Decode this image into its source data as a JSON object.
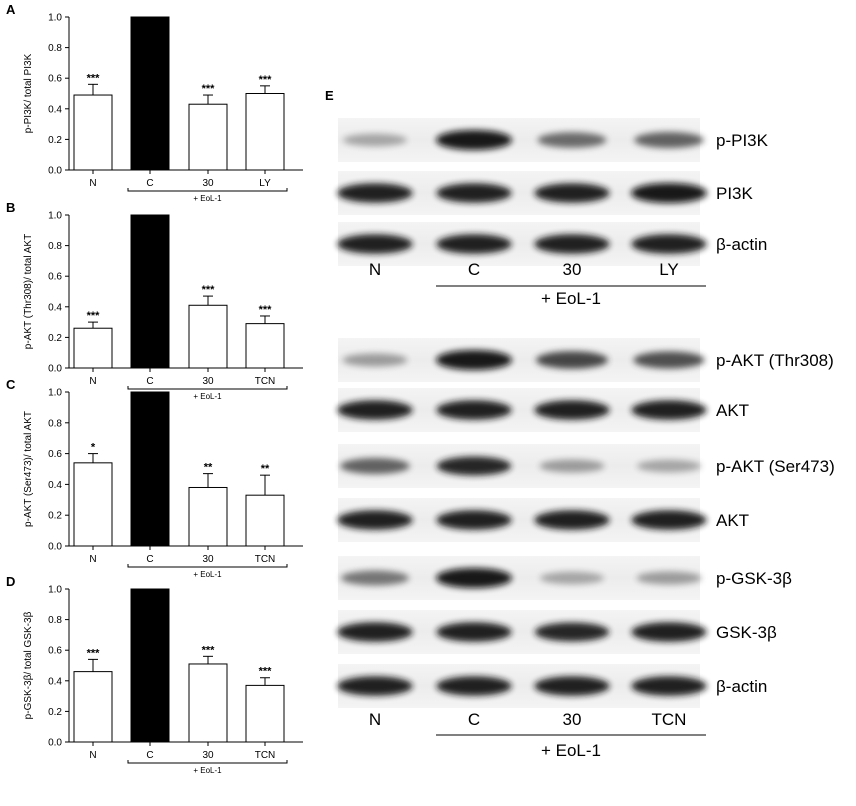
{
  "chart_data": [
    {
      "panel": "A",
      "type": "bar",
      "ylabel": "p-PI3K/ total PI3K",
      "ylim": [
        0,
        1.0
      ],
      "yticks": [
        "0.0",
        "0.2",
        "0.4",
        "0.6",
        "0.8",
        "1.0"
      ],
      "categories": [
        "N",
        "C",
        "30",
        "LY"
      ],
      "values": [
        0.49,
        1.0,
        0.43,
        0.5
      ],
      "errors": [
        0.07,
        0,
        0.06,
        0.05
      ],
      "significance": [
        "***",
        "",
        "***",
        "***"
      ],
      "fill": [
        "white",
        "black",
        "white",
        "white"
      ],
      "group_label": "+ EoL-1"
    },
    {
      "panel": "B",
      "type": "bar",
      "ylabel": "p-AKT (Thr308)/ total AKT",
      "ylim": [
        0,
        1.0
      ],
      "yticks": [
        "0.0",
        "0.2",
        "0.4",
        "0.6",
        "0.8",
        "1.0"
      ],
      "categories": [
        "N",
        "C",
        "30",
        "TCN"
      ],
      "values": [
        0.26,
        1.0,
        0.41,
        0.29
      ],
      "errors": [
        0.04,
        0,
        0.06,
        0.05
      ],
      "significance": [
        "***",
        "",
        "***",
        "***"
      ],
      "fill": [
        "white",
        "black",
        "white",
        "white"
      ],
      "group_label": "+ EoL-1"
    },
    {
      "panel": "C",
      "type": "bar",
      "ylabel": "p-AKT (Ser473)/ total AKT",
      "ylim": [
        0,
        1.0
      ],
      "yticks": [
        "0.0",
        "0.2",
        "0.4",
        "0.6",
        "0.8",
        "1.0"
      ],
      "categories": [
        "N",
        "C",
        "30",
        "TCN"
      ],
      "values": [
        0.54,
        1.0,
        0.38,
        0.33
      ],
      "errors": [
        0.06,
        0,
        0.09,
        0.13
      ],
      "significance": [
        "*",
        "",
        "**",
        "**"
      ],
      "fill": [
        "white",
        "black",
        "white",
        "white"
      ],
      "group_label": "+ EoL-1"
    },
    {
      "panel": "D",
      "type": "bar",
      "ylabel": "p-GSK-3β/ total GSK-3β",
      "ylim": [
        0,
        1.0
      ],
      "yticks": [
        "0.0",
        "0.2",
        "0.4",
        "0.6",
        "0.8",
        "1.0"
      ],
      "categories": [
        "N",
        "C",
        "30",
        "TCN"
      ],
      "values": [
        0.46,
        1.0,
        0.51,
        0.37
      ],
      "errors": [
        0.08,
        0,
        0.05,
        0.05
      ],
      "significance": [
        "***",
        "",
        "***",
        "***"
      ],
      "fill": [
        "white",
        "black",
        "white",
        "white"
      ],
      "group_label": "+ EoL-1"
    }
  ],
  "blot": {
    "panel": "E",
    "groups": [
      {
        "bands": [
          {
            "label": "p-PI3K",
            "intensity": [
              0.25,
              1.0,
              0.55,
              0.6
            ]
          },
          {
            "label": "PI3K",
            "intensity": [
              0.95,
              0.95,
              0.95,
              1.0
            ]
          },
          {
            "label": "β-actin",
            "intensity": [
              0.95,
              0.95,
              0.95,
              0.95
            ]
          }
        ],
        "lanes": [
          "N",
          "C",
          "30",
          "LY"
        ],
        "group_label": "+ EoL-1"
      },
      {
        "bands": [
          {
            "label": "p-AKT (Thr308)",
            "intensity": [
              0.3,
              1.0,
              0.75,
              0.7
            ]
          },
          {
            "label": "AKT",
            "intensity": [
              0.95,
              0.95,
              0.95,
              0.95
            ]
          },
          {
            "label": "p-AKT (Ser473)",
            "intensity": [
              0.6,
              0.9,
              0.3,
              0.25
            ]
          },
          {
            "label": "AKT",
            "intensity": [
              0.95,
              0.95,
              0.95,
              0.95
            ]
          },
          {
            "label": "p-GSK-3β",
            "intensity": [
              0.5,
              1.0,
              0.25,
              0.3
            ]
          },
          {
            "label": "GSK-3β",
            "intensity": [
              0.95,
              0.95,
              0.9,
              0.95
            ]
          },
          {
            "label": "β-actin",
            "intensity": [
              0.95,
              0.95,
              0.95,
              0.95
            ]
          }
        ],
        "lanes": [
          "N",
          "C",
          "30",
          "TCN"
        ],
        "group_label": "+ EoL-1"
      }
    ]
  }
}
